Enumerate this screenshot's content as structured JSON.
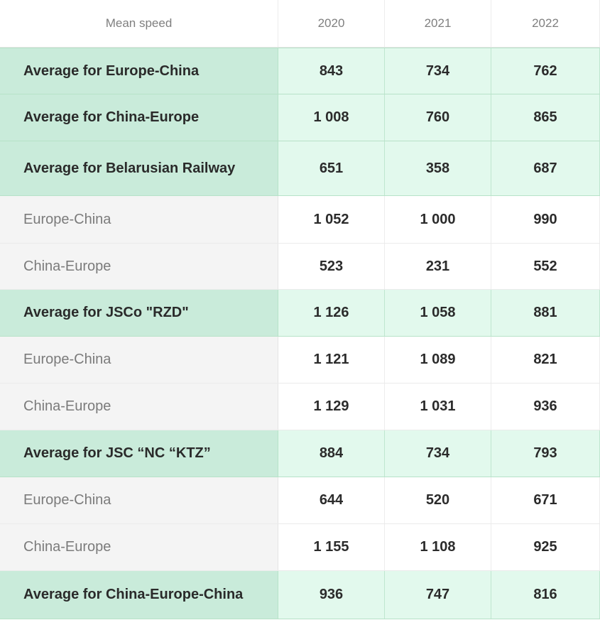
{
  "header": [
    "Mean speed",
    "2020",
    "2021",
    "2022"
  ],
  "rows": [
    {
      "label": "Average for Europe-China",
      "values": [
        "843",
        "734",
        "762"
      ],
      "kind": "summary"
    },
    {
      "label": "Average for China-Europe",
      "values": [
        "1 008",
        "760",
        "865"
      ],
      "kind": "summary"
    },
    {
      "label": "Average for Belarusian Railway",
      "values": [
        "651",
        "358",
        "687"
      ],
      "kind": "summary"
    },
    {
      "label": "Europe-China",
      "values": [
        "1 052",
        "1 000",
        "990"
      ],
      "kind": "detail"
    },
    {
      "label": "China-Europe",
      "values": [
        "523",
        "231",
        "552"
      ],
      "kind": "detail"
    },
    {
      "label": "Average for JSCo \"RZD\"",
      "values": [
        "1 126",
        "1 058",
        "881"
      ],
      "kind": "summary"
    },
    {
      "label": "Europe-China",
      "values": [
        "1 121",
        "1 089",
        "821"
      ],
      "kind": "detail"
    },
    {
      "label": "China-Europe",
      "values": [
        "1 129",
        "1 031",
        "936"
      ],
      "kind": "detail"
    },
    {
      "label": "Average for JSC “NC “KTZ”",
      "values": [
        "884",
        "734",
        "793"
      ],
      "kind": "summary"
    },
    {
      "label": "Europe-China",
      "values": [
        "644",
        "520",
        "671"
      ],
      "kind": "detail"
    },
    {
      "label": "China-Europe",
      "values": [
        "1 155",
        "1 108",
        "925"
      ],
      "kind": "detail"
    },
    {
      "label": "Average for China-Europe-China",
      "values": [
        "936",
        "747",
        "816"
      ],
      "kind": "summary"
    }
  ],
  "colors": {
    "summary_label_bg": "#c9ebda",
    "summary_value_bg": "#e2f9ed",
    "detail_label_bg": "#f4f4f4",
    "detail_value_bg": "#ffffff"
  }
}
